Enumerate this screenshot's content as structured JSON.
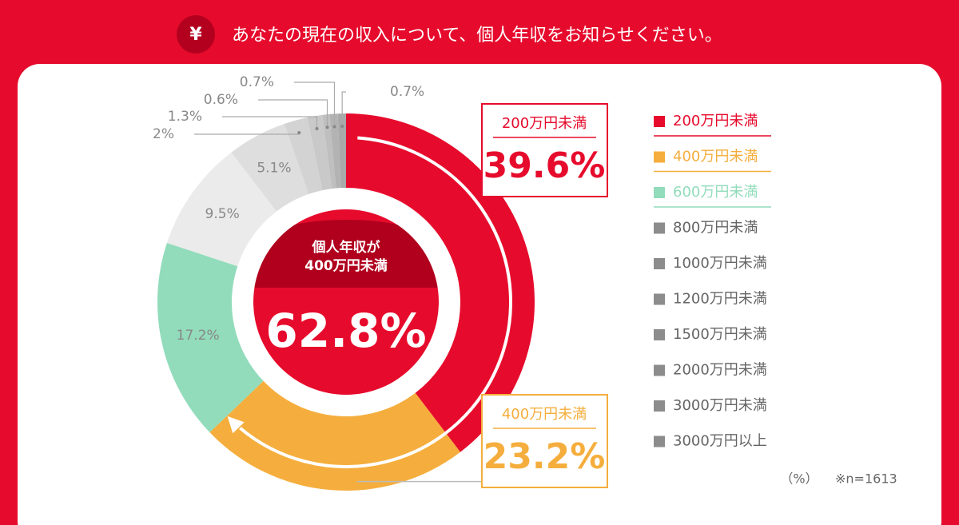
{
  "header": {
    "icon": "¥",
    "title": "あなたの現在の収入について、個人年収をお知らせください。"
  },
  "chart_data": {
    "type": "pie",
    "categories": [
      "200万円未満",
      "400万円未満",
      "600万円未満",
      "800万円未満",
      "1000万円未満",
      "1200万円未満",
      "1500万円未満",
      "2000万円未満",
      "3000万円未満",
      "3000万円以上"
    ],
    "values": [
      39.6,
      23.2,
      17.2,
      9.5,
      5.1,
      2,
      1.3,
      0.6,
      0.7,
      0.7
    ],
    "value_labels": [
      "39.6%",
      "23.2%",
      "17.2%",
      "9.5%",
      "5.1%",
      "2%",
      "1.3%",
      "0.6%",
      "0.7%",
      "0.7%"
    ],
    "colors": [
      "#e60b2c",
      "#f5ae3d",
      "#92dcbb",
      "#ebebeb",
      "#dedede",
      "#d3d3d3",
      "#c9c9c9",
      "#bfbfbf",
      "#b3b3b3",
      "#a9a9a9"
    ],
    "legend_colors": [
      "#e60b2c",
      "#f5ae3d",
      "#92dcbb",
      "#8c8c8c",
      "#8c8c8c",
      "#8c8c8c",
      "#8c8c8c",
      "#8c8c8c",
      "#8c8c8c",
      "#8c8c8c"
    ],
    "legend_underline": [
      true,
      true,
      true,
      false,
      false,
      false,
      false,
      false,
      false,
      false
    ],
    "callouts": [
      0,
      1
    ],
    "center": {
      "lines": [
        "個人年収が",
        "400万円未満"
      ],
      "value": 62.8,
      "value_label": "62.8%"
    },
    "unit_note": "（%）",
    "n_note": "※n=1613"
  }
}
